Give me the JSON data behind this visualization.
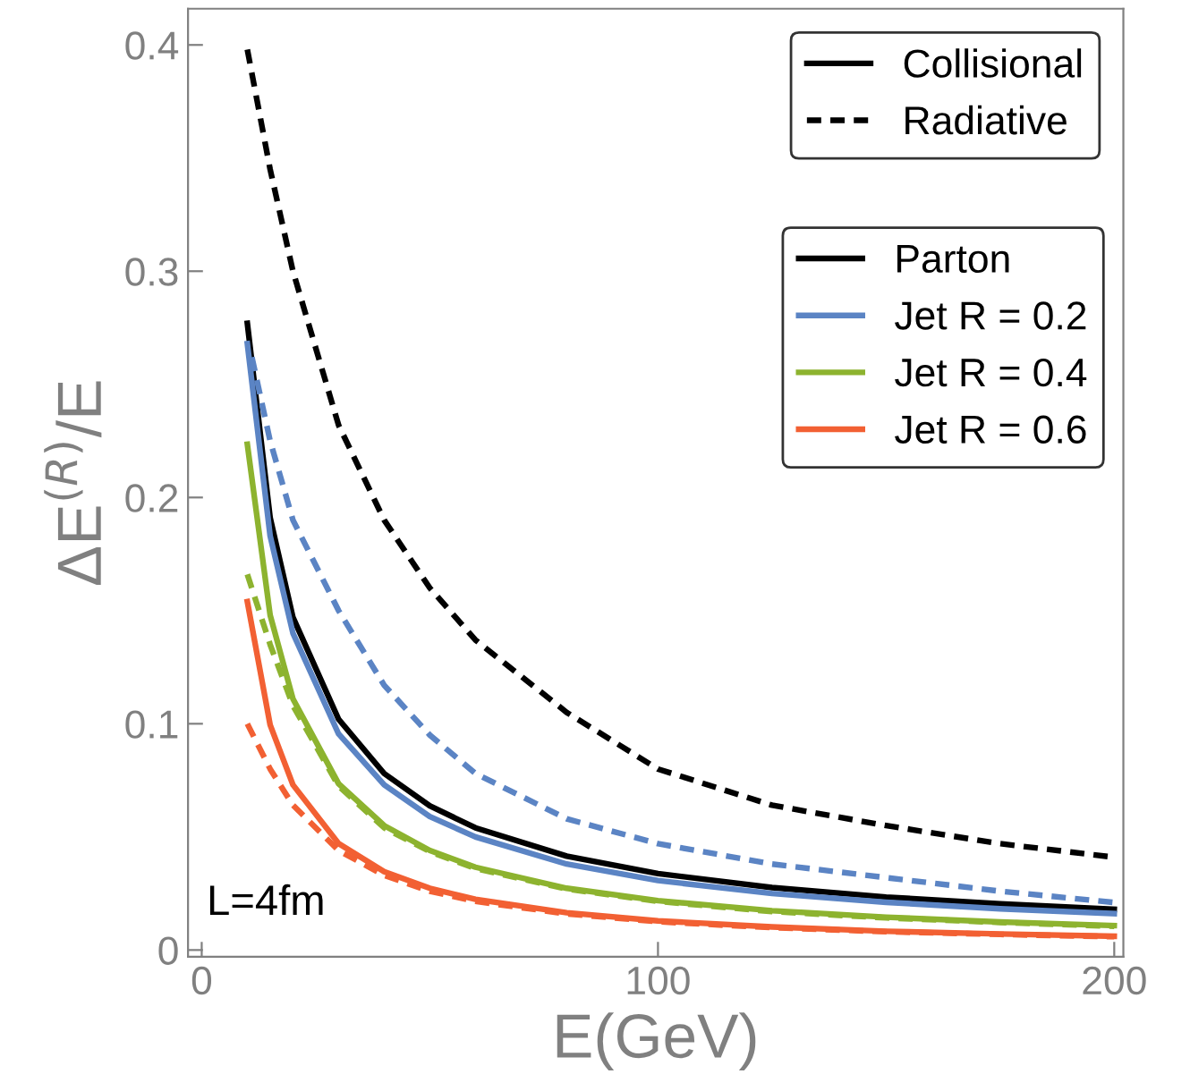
{
  "chart_data": {
    "type": "line",
    "xlabel": "E(GeV)",
    "ylabel": "ΔE$^{(R)}$/E",
    "xlim": [
      -3,
      202
    ],
    "ylim": [
      -0.003,
      0.416
    ],
    "xticks": [
      0,
      100,
      200
    ],
    "yticks": [
      0,
      0.1,
      0.2,
      0.3,
      0.4
    ],
    "grid": false,
    "legend": "top right",
    "marker": "none",
    "annotations": [
      "L=4fm",
      "Collisional",
      "Radiative"
    ],
    "series": [
      {
        "name": "Parton",
        "color": "#000000",
        "line_style": "solid",
        "x": [
          10,
          15,
          20,
          30,
          40,
          50,
          60,
          80,
          100,
          125,
          150,
          175,
          200
        ],
        "values": [
          0.277,
          0.191,
          0.147,
          0.102,
          0.078,
          0.0637,
          0.054,
          0.0415,
          0.0338,
          0.0276,
          0.0234,
          0.0204,
          0.018
        ]
      },
      {
        "name": "Jet R = 0.2",
        "color": "#5b84c4",
        "line_style": "solid",
        "x": [
          10,
          15,
          20,
          30,
          40,
          50,
          60,
          80,
          100,
          125,
          150,
          175,
          200
        ],
        "values": [
          0.268,
          0.183,
          0.14,
          0.0955,
          0.073,
          0.059,
          0.05,
          0.038,
          0.0307,
          0.025,
          0.0211,
          0.0182,
          0.0161
        ]
      },
      {
        "name": "Jet R = 0.4",
        "color": "#8db32f",
        "line_style": "solid",
        "x": [
          10,
          15,
          20,
          30,
          40,
          50,
          60,
          80,
          100,
          125,
          150,
          175,
          200
        ],
        "values": [
          0.2235,
          0.148,
          0.111,
          0.0735,
          0.055,
          0.044,
          0.0366,
          0.0273,
          0.0218,
          0.0174,
          0.0145,
          0.0124,
          0.0108
        ]
      },
      {
        "name": "Jet R = 0.6",
        "color": "#f26033",
        "line_style": "solid",
        "x": [
          10,
          15,
          20,
          30,
          40,
          50,
          60,
          80,
          100,
          125,
          150,
          175,
          200
        ],
        "values": [
          0.154,
          0.0995,
          0.073,
          0.0471,
          0.0346,
          0.0273,
          0.0224,
          0.0165,
          0.0129,
          0.0102,
          0.0083,
          0.0071,
          0.0061
        ]
      },
      {
        "color": "#000000",
        "line_style": "dashed",
        "x": [
          10,
          15,
          20,
          30,
          40,
          50,
          60,
          80,
          100,
          125,
          150,
          175,
          200
        ],
        "values": [
          0.398,
          0.345,
          0.3,
          0.232,
          0.19,
          0.16,
          0.137,
          0.105,
          0.08,
          0.064,
          0.055,
          0.047,
          0.041
        ]
      },
      {
        "color": "#5b84c4",
        "line_style": "dashed",
        "x": [
          11,
          15,
          20,
          30,
          40,
          50,
          60,
          80,
          100,
          125,
          150,
          175,
          200
        ],
        "values": [
          0.262,
          0.225,
          0.19,
          0.15,
          0.117,
          0.095,
          0.078,
          0.058,
          0.047,
          0.038,
          0.032,
          0.026,
          0.021
        ]
      },
      {
        "color": "#8db32f",
        "line_style": "dashed",
        "x": [
          10,
          15,
          20,
          30,
          40,
          50,
          60,
          80,
          100,
          125,
          150,
          175,
          200
        ],
        "values": [
          0.166,
          0.135,
          0.108,
          0.0725,
          0.054,
          0.0435,
          0.036,
          0.027,
          0.0215,
          0.017,
          0.0142,
          0.0122,
          0.0105
        ]
      },
      {
        "color": "#f26033",
        "line_style": "dashed",
        "x": [
          10,
          15,
          20,
          30,
          40,
          50,
          60,
          80,
          100,
          125,
          150,
          175,
          200
        ],
        "values": [
          0.1,
          0.08,
          0.064,
          0.044,
          0.033,
          0.026,
          0.0215,
          0.016,
          0.0125,
          0.0099,
          0.0081,
          0.0069,
          0.0059
        ]
      }
    ]
  }
}
